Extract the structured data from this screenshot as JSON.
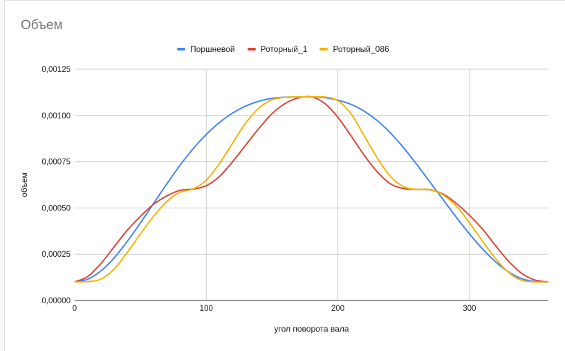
{
  "chart_data": {
    "type": "line",
    "title": "Объем",
    "xlabel": "угол поворота вала",
    "ylabel": "объем",
    "xlim": [
      0,
      360
    ],
    "ylim": [
      0,
      0.00125
    ],
    "x_ticks": [
      0,
      100,
      200,
      300
    ],
    "x_tick_labels": [
      "0",
      "100",
      "200",
      "300"
    ],
    "y_ticks": [
      0,
      0.00025,
      0.0005,
      0.00075,
      0.001,
      0.00125
    ],
    "y_tick_labels": [
      "0,00000",
      "0,00025",
      "0,00050",
      "0,00075",
      "0,00100",
      "0,00125"
    ],
    "grid": true,
    "legend_position": "top",
    "x": [
      0,
      10,
      20,
      30,
      40,
      50,
      60,
      70,
      80,
      90,
      100,
      110,
      120,
      130,
      140,
      150,
      160,
      170,
      180,
      190,
      200,
      210,
      220,
      230,
      240,
      250,
      260,
      270,
      280,
      290,
      300,
      310,
      320,
      330,
      340,
      350,
      360
    ],
    "series": [
      {
        "name": "Поршневой",
        "color": "#4285f4",
        "values": [
          0.0001,
          0.000115,
          0.00016,
          0.00023,
          0.00032,
          0.00042,
          0.000525,
          0.00063,
          0.00073,
          0.00082,
          0.000898,
          0.000962,
          0.001013,
          0.001051,
          0.001077,
          0.001093,
          0.001099,
          0.0011,
          0.0011,
          0.001096,
          0.001083,
          0.00106,
          0.001023,
          0.000972,
          0.000905,
          0.000825,
          0.000735,
          0.00064,
          0.000545,
          0.00045,
          0.00036,
          0.000278,
          0.000208,
          0.000153,
          0.000117,
          0.000102,
          0.0001
        ]
      },
      {
        "name": "Роторный_1",
        "color": "#db4437",
        "values": [
          0.0001,
          0.00013,
          0.0002,
          0.00029,
          0.00038,
          0.000455,
          0.00052,
          0.000565,
          0.000595,
          0.000602,
          0.00062,
          0.00067,
          0.00075,
          0.00084,
          0.00093,
          0.00101,
          0.001065,
          0.001095,
          0.0011,
          0.001065,
          0.00099,
          0.00089,
          0.000785,
          0.000695,
          0.00063,
          0.000605,
          0.0006,
          0.000598,
          0.000575,
          0.000525,
          0.00046,
          0.000385,
          0.000295,
          0.00021,
          0.000145,
          0.00011,
          0.0001
        ]
      },
      {
        "name": "Роторный_086",
        "color": "#f4b400",
        "values": [
          0.0001,
          0.000102,
          0.000115,
          0.00017,
          0.00026,
          0.00036,
          0.000455,
          0.000535,
          0.000585,
          0.000603,
          0.00065,
          0.00074,
          0.00085,
          0.00096,
          0.00104,
          0.001085,
          0.001098,
          0.0011,
          0.0011,
          0.0011,
          0.00108,
          0.00101,
          0.00089,
          0.00077,
          0.00067,
          0.000615,
          0.0006,
          0.0006,
          0.00057,
          0.00051,
          0.00042,
          0.00032,
          0.000225,
          0.00015,
          0.000108,
          0.0001,
          0.0001
        ]
      }
    ]
  }
}
